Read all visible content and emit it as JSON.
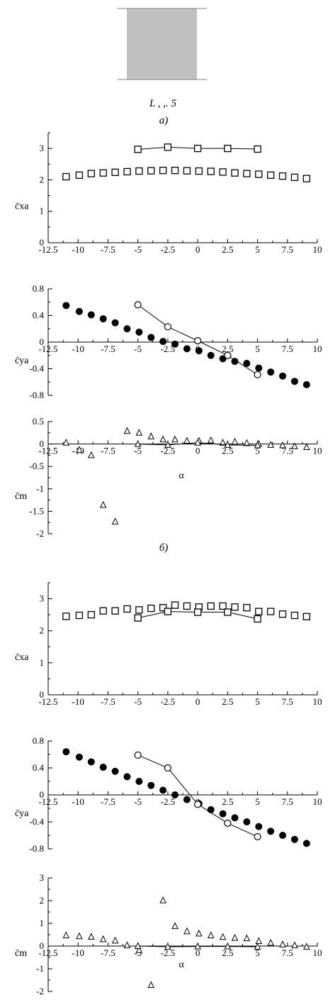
{
  "header": {
    "model_caption": "L , ,. 5",
    "panel_a_label": "а)",
    "panel_b_label": "б)"
  },
  "colors": {
    "axis": "#000000",
    "model_fill": "#c0c0c0",
    "model_line": "#808080"
  },
  "chart_data": [
    {
      "id": "b-cxa",
      "type": "scatter",
      "ylabel": "c̄xa",
      "xlim": [
        -12.5,
        10
      ],
      "ylim": [
        0,
        3.5
      ],
      "xticks": [
        "-12.5",
        "-10",
        "-7.5",
        "-5",
        "-2.5",
        "0",
        "2.5",
        "5",
        "7.5",
        "10"
      ],
      "yticks": [
        "0",
        "1",
        "2",
        "3"
      ],
      "series": [
        {
          "marker": "square",
          "line": false,
          "x": [
            -11,
            -9.9,
            -8.9,
            -7.9,
            -6.9,
            -5.9,
            -4.9,
            -3.9,
            -2.9,
            -1.9,
            -0.9,
            0.1,
            1.1,
            2.1,
            3.1,
            4.1,
            5.1,
            6.1,
            7.1,
            8.1,
            9.1
          ],
          "y": [
            2.1,
            2.15,
            2.2,
            2.22,
            2.24,
            2.26,
            2.28,
            2.29,
            2.3,
            2.3,
            2.29,
            2.28,
            2.27,
            2.25,
            2.22,
            2.2,
            2.18,
            2.15,
            2.12,
            2.08,
            2.04
          ]
        },
        {
          "marker": "square",
          "line": true,
          "x": [
            -5,
            -2.5,
            0,
            2.5,
            5
          ],
          "y": [
            2.97,
            3.04,
            3.0,
            3.0,
            2.98
          ]
        }
      ]
    },
    {
      "id": "b-cya",
      "type": "scatter",
      "ylabel": "c̄ya",
      "xlim": [
        -12.5,
        10
      ],
      "ylim": [
        -0.8,
        0.8
      ],
      "xticks": [
        "-12.5",
        "-10",
        "-7.5",
        "-5",
        "-2.5",
        "0",
        "2.5",
        "5",
        "7.5",
        "10"
      ],
      "yticks": [
        "-0.8",
        "-0.4",
        "0",
        "0.4",
        "0.8"
      ],
      "series": [
        {
          "marker": "disc",
          "line": false,
          "x": [
            -11,
            -9.9,
            -8.9,
            -7.9,
            -6.9,
            -5.9,
            -4.9,
            -3.9,
            -2.9,
            -1.9,
            -0.9,
            0.1,
            1.1,
            2.1,
            3.1,
            4.1,
            5.1,
            6.1,
            7.1,
            8.1,
            9.1
          ],
          "y": [
            0.55,
            0.46,
            0.41,
            0.35,
            0.29,
            0.2,
            0.15,
            0.07,
            0.01,
            -0.03,
            -0.1,
            -0.13,
            -0.2,
            -0.25,
            -0.29,
            -0.32,
            -0.39,
            -0.45,
            -0.51,
            -0.59,
            -0.64
          ]
        },
        {
          "marker": "circle",
          "line": true,
          "x": [
            -5,
            -2.5,
            0,
            2.5,
            5
          ],
          "y": [
            0.56,
            0.23,
            0.02,
            -0.2,
            -0.49
          ]
        }
      ]
    },
    {
      "id": "b-cm",
      "type": "scatter",
      "ylabel": "c̄m",
      "xlim": [
        -12.5,
        10
      ],
      "ylim": [
        -2,
        0.5
      ],
      "xticks": [
        "-12.5",
        "-10",
        "-7.5",
        "-5",
        "-2.5",
        "0",
        "2.5",
        "5",
        "7.5",
        "10"
      ],
      "yticks": [
        "-2",
        "-1.5",
        "-1",
        "-0.5",
        "0",
        "0.5"
      ],
      "series": [
        {
          "marker": "triangle",
          "line": false,
          "x": [
            -11,
            -9.9,
            -8.9,
            -7.9,
            -6.9,
            -5.9,
            -4.9,
            -3.9,
            -2.9,
            -1.9,
            -0.9,
            0.1,
            1.1,
            2.1,
            3.1,
            4.1,
            5.1,
            6.1,
            7.1,
            8.1,
            9.1
          ],
          "y": [
            0.03,
            -0.13,
            -0.25,
            -1.36,
            -1.73,
            0.29,
            0.25,
            0.17,
            0.1,
            0.1,
            0.07,
            0.07,
            0.08,
            0.03,
            0.05,
            0.02,
            0.0,
            -0.02,
            -0.03,
            -0.05,
            -0.07
          ]
        },
        {
          "marker": "triangle",
          "line": true,
          "x": [
            -5,
            -2.5,
            0,
            2.5,
            5
          ],
          "y": [
            0.0,
            -0.02,
            0.03,
            -0.02,
            -0.03
          ]
        }
      ]
    },
    {
      "id": "c-cxa",
      "type": "scatter",
      "ylabel": "c̄xa",
      "xlim": [
        -12.5,
        10
      ],
      "ylim": [
        0,
        3.5
      ],
      "xticks": [
        "-12.5",
        "-10",
        "-7.5",
        "-5",
        "-2.5",
        "0",
        "2.5",
        "5",
        "7.5",
        "10"
      ],
      "yticks": [
        "0",
        "1",
        "2",
        "3"
      ],
      "series": [
        {
          "marker": "square",
          "line": false,
          "x": [
            -11,
            -9.9,
            -8.9,
            -7.9,
            -6.9,
            -5.9,
            -4.9,
            -3.9,
            -2.9,
            -1.9,
            -0.9,
            0.1,
            1.1,
            2.1,
            3.1,
            4.1,
            5.1,
            6.1,
            7.1,
            8.1,
            9.1
          ],
          "y": [
            2.45,
            2.48,
            2.5,
            2.62,
            2.62,
            2.68,
            2.65,
            2.7,
            2.72,
            2.8,
            2.77,
            2.74,
            2.77,
            2.77,
            2.74,
            2.72,
            2.6,
            2.6,
            2.52,
            2.48,
            2.44
          ]
        },
        {
          "marker": "square",
          "line": true,
          "x": [
            -5,
            -2.5,
            0,
            2.5,
            5
          ],
          "y": [
            2.4,
            2.6,
            2.58,
            2.58,
            2.37
          ]
        }
      ]
    },
    {
      "id": "c-cya",
      "type": "scatter",
      "ylabel": "c̄ya",
      "xlim": [
        -12.5,
        10
      ],
      "ylim": [
        -0.8,
        0.8
      ],
      "xticks": [
        "-12.5",
        "-10",
        "-7.5",
        "-5",
        "-2.5",
        "0",
        "2.5",
        "5",
        "7.5",
        "10"
      ],
      "yticks": [
        "-0.8",
        "-0.4",
        "0",
        "0.4",
        "0.8"
      ],
      "series": [
        {
          "marker": "disc",
          "line": false,
          "x": [
            -11,
            -9.9,
            -8.9,
            -7.9,
            -6.9,
            -5.9,
            -4.9,
            -3.9,
            -2.9,
            -1.9,
            -0.9,
            0.1,
            1.1,
            2.1,
            3.1,
            4.1,
            5.1,
            6.1,
            7.1,
            8.1,
            9.1
          ],
          "y": [
            0.64,
            0.56,
            0.49,
            0.41,
            0.35,
            0.27,
            0.2,
            0.14,
            0.07,
            0.0,
            -0.07,
            -0.13,
            -0.22,
            -0.28,
            -0.34,
            -0.4,
            -0.47,
            -0.54,
            -0.6,
            -0.66,
            -0.72
          ]
        },
        {
          "marker": "circle",
          "line": true,
          "x": [
            -5,
            -2.5,
            0,
            2.5,
            5
          ],
          "y": [
            0.59,
            0.4,
            -0.14,
            -0.42,
            -0.62
          ]
        }
      ]
    },
    {
      "id": "c-cm",
      "type": "scatter",
      "ylabel": "c̄m",
      "xlabel": "α",
      "xlim": [
        -12.5,
        10
      ],
      "ylim": [
        -2,
        3
      ],
      "xticks": [
        "-12.5",
        "-10",
        "-7.5",
        "-5",
        "-2.5",
        "0",
        "2.5",
        "5",
        "7.5",
        "10"
      ],
      "yticks": [
        "-2",
        "-1",
        "0",
        "1",
        "2",
        "3"
      ],
      "series": [
        {
          "marker": "triangle",
          "line": false,
          "x": [
            -11,
            -9.9,
            -8.9,
            -7.9,
            -6.9,
            -5.9,
            -4.9,
            -3.9,
            -2.9,
            -1.9,
            -0.9,
            0.1,
            1.1,
            2.1,
            3.1,
            4.1,
            5.1,
            6.1,
            7.1,
            8.1,
            9.1
          ],
          "y": [
            0.47,
            0.43,
            0.41,
            0.3,
            0.24,
            0.03,
            -0.18,
            -1.72,
            2.01,
            0.88,
            0.65,
            0.55,
            0.47,
            0.4,
            0.36,
            0.34,
            0.22,
            0.14,
            0.07,
            0.03,
            -0.03
          ]
        },
        {
          "marker": "triangle",
          "line": true,
          "x": [
            -5,
            -2.5,
            0,
            2.5,
            5
          ],
          "y": [
            0.0,
            -0.03,
            -0.02,
            -0.02,
            -0.03
          ]
        }
      ]
    }
  ],
  "b_cm_xlabel": "α"
}
